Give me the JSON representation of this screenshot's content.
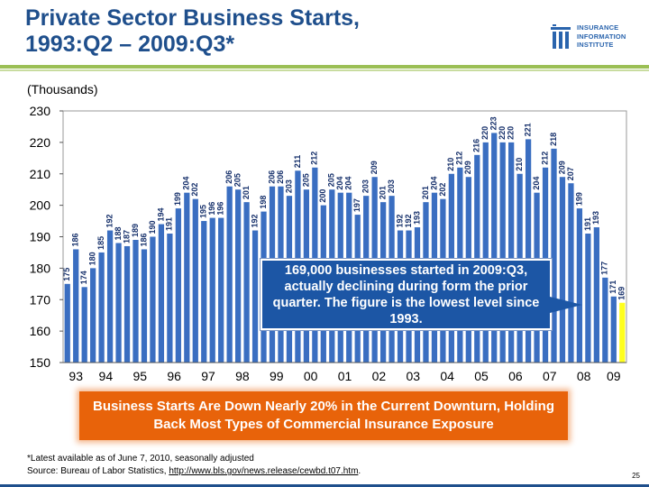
{
  "slide": {
    "title_line1": "Private Sector Business Starts,",
    "title_line2": "1993:Q2 – 2009:Q3*",
    "subtitle": "(Thousands)",
    "logo_lines": [
      "INSURANCE",
      "INFORMATION",
      "INSTITUTE"
    ],
    "callout": "169,000 businesses started in 2009:Q3, actually declining during form the prior quarter.  The figure is the lowest level since 1993.",
    "banner": "Business Starts Are Down Nearly 20% in the Current Downturn, Holding Back Most Types of Commercial Insurance Exposure",
    "footnote": "*Latest available as of June 7, 2010, seasonally adjusted",
    "source_prefix": "Source: Bureau of Labor Statistics, ",
    "source_link": "http://www.bls.gov/news.release/cewbd.t07.htm",
    "source_suffix": ".",
    "page_number": "25",
    "colors": {
      "bar": "#3a6ec1",
      "highlight": "#ffff1e",
      "label": "#16306b",
      "title": "#1f4f8c",
      "banner": "#e8630a",
      "callout": "#1c56a5"
    }
  },
  "chart_data": {
    "type": "bar",
    "title": "Private Sector Business Starts, 1993:Q2 – 2009:Q3*",
    "ylabel": "(Thousands)",
    "ylim": [
      150,
      230
    ],
    "yticks": [
      150,
      160,
      170,
      180,
      190,
      200,
      210,
      220,
      230
    ],
    "first_period": "1993:Q2",
    "last_period": "2009:Q3",
    "year_labels": [
      "93",
      "94",
      "95",
      "96",
      "97",
      "98",
      "99",
      "00",
      "01",
      "02",
      "03",
      "04",
      "05",
      "06",
      "07",
      "08",
      "09"
    ],
    "values": [
      175,
      186,
      174,
      180,
      185,
      192,
      188,
      187,
      189,
      186,
      190,
      194,
      191,
      199,
      204,
      202,
      195,
      196,
      196,
      206,
      205,
      201,
      192,
      198,
      206,
      206,
      203,
      211,
      205,
      212,
      200,
      205,
      204,
      204,
      197,
      203,
      209,
      201,
      203,
      192,
      192,
      193,
      201,
      204,
      202,
      210,
      212,
      209,
      216,
      220,
      223,
      220,
      220,
      210,
      221,
      204,
      212,
      218,
      209,
      207,
      199,
      191,
      193,
      177,
      171,
      169
    ],
    "highlight_last": true,
    "grid": false
  }
}
